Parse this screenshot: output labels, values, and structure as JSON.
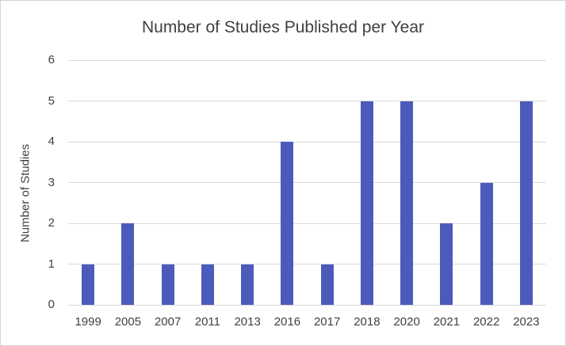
{
  "chart_data": {
    "type": "bar",
    "title": "Number of Studies Published per Year",
    "xlabel": "",
    "ylabel": "Number of Studies",
    "categories": [
      "1999",
      "2005",
      "2007",
      "2011",
      "2013",
      "2016",
      "2017",
      "2018",
      "2020",
      "2021",
      "2022",
      "2023"
    ],
    "values": [
      1,
      2,
      1,
      1,
      1,
      4,
      1,
      5,
      5,
      2,
      3,
      5
    ],
    "ylim": [
      0,
      6
    ],
    "ytick_step": 1,
    "grid": true,
    "legend": false,
    "bar_color": "#4c5bbb",
    "gridline_color": "#d9d9d9",
    "text_color": "#404040",
    "frame_border_color": "#d5d5d5",
    "background_color": "#ffffff"
  }
}
